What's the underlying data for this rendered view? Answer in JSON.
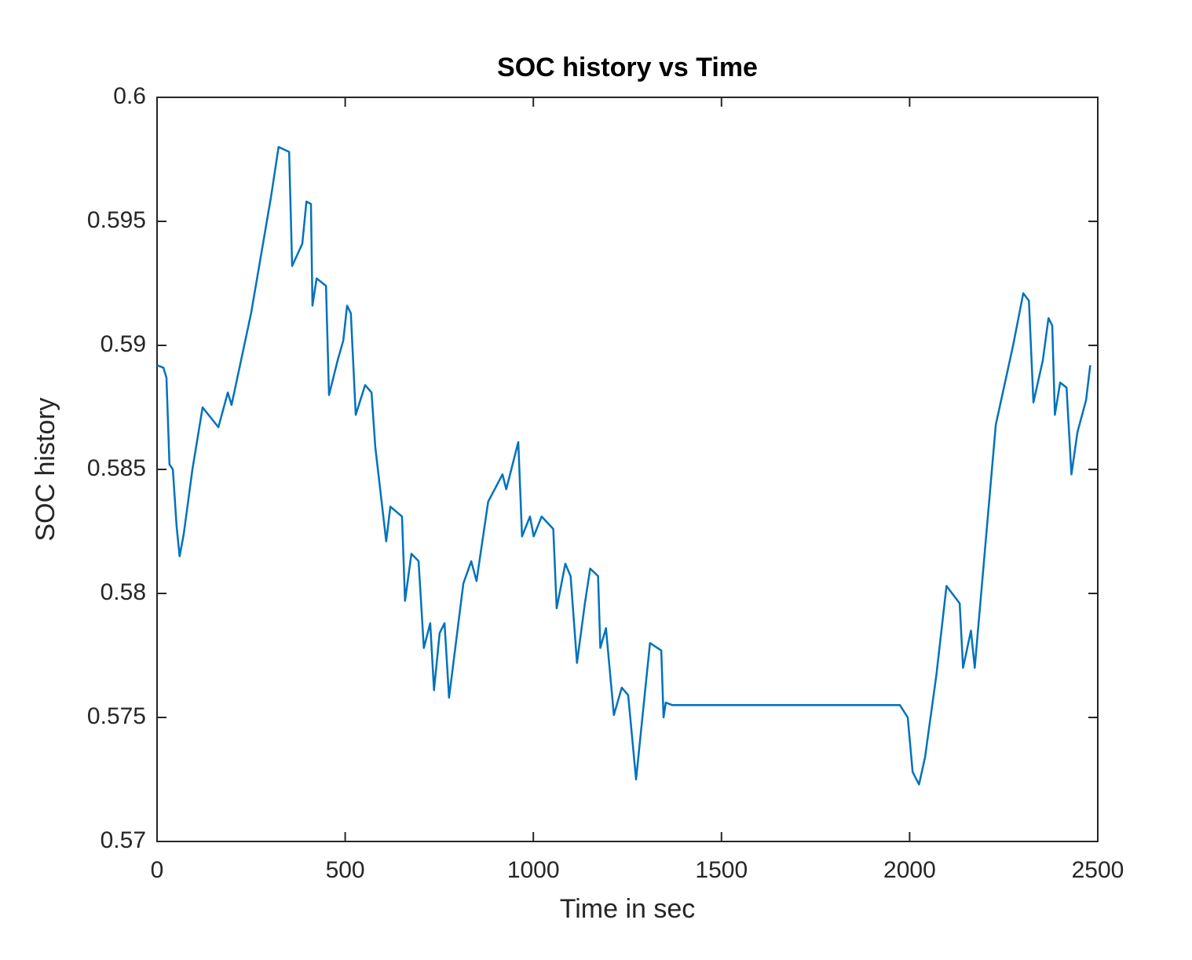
{
  "chart_data": {
    "type": "line",
    "title": "SOC history vs Time",
    "xlabel": "Time in sec",
    "ylabel": "SOC history",
    "x": [
      0,
      17,
      25,
      33,
      42,
      52,
      60,
      71,
      94,
      121,
      163,
      188,
      198,
      250,
      303,
      323,
      351,
      359,
      386,
      397,
      409,
      413,
      424,
      449,
      457,
      480,
      495,
      505,
      515,
      528,
      553,
      570,
      580,
      609,
      620,
      651,
      659,
      676,
      695,
      709,
      726,
      736,
      751,
      764,
      776,
      814,
      835,
      849,
      880,
      918,
      928,
      960,
      970,
      991,
      1001,
      1022,
      1053,
      1062,
      1085,
      1099,
      1116,
      1137,
      1151,
      1172,
      1178,
      1193,
      1214,
      1235,
      1252,
      1273,
      1310,
      1340,
      1346,
      1352,
      1369,
      1974,
      1995,
      2008,
      2025,
      2041,
      2071,
      2098,
      2133,
      2142,
      2163,
      2173,
      2229,
      2275,
      2302,
      2317,
      2329,
      2354,
      2369,
      2379,
      2386,
      2400,
      2417,
      2430,
      2446,
      2469,
      2480
    ],
    "series": [
      {
        "name": "SOC",
        "color": "#0072bd",
        "values": [
          0.5892,
          0.5891,
          0.5887,
          0.5852,
          0.585,
          0.5827,
          0.5815,
          0.5824,
          0.585,
          0.5875,
          0.5867,
          0.5881,
          0.5876,
          0.5913,
          0.596,
          0.598,
          0.5978,
          0.5932,
          0.5941,
          0.5958,
          0.5957,
          0.5916,
          0.5927,
          0.5924,
          0.588,
          0.5894,
          0.5902,
          0.5916,
          0.5913,
          0.5872,
          0.5884,
          0.5881,
          0.5859,
          0.5821,
          0.5835,
          0.5831,
          0.5797,
          0.5816,
          0.5813,
          0.5778,
          0.5788,
          0.5761,
          0.5784,
          0.5788,
          0.5758,
          0.5804,
          0.5813,
          0.5805,
          0.5837,
          0.5848,
          0.5842,
          0.5861,
          0.5823,
          0.5831,
          0.5823,
          0.5831,
          0.5826,
          0.5794,
          0.5812,
          0.5807,
          0.5772,
          0.5796,
          0.581,
          0.5807,
          0.5778,
          0.5786,
          0.5751,
          0.5762,
          0.5759,
          0.5725,
          0.578,
          0.5777,
          0.575,
          0.5756,
          0.5755,
          0.5755,
          0.575,
          0.5728,
          0.5723,
          0.5734,
          0.5767,
          0.5803,
          0.5796,
          0.577,
          0.5785,
          0.577,
          0.5868,
          0.59,
          0.5921,
          0.5918,
          0.5877,
          0.5894,
          0.5911,
          0.5908,
          0.5872,
          0.5885,
          0.5883,
          0.5848,
          0.5865,
          0.5878,
          0.5892
        ]
      }
    ],
    "xlim": [
      0,
      2500
    ],
    "xticks": [
      0,
      500,
      1000,
      1500,
      2000,
      2500
    ],
    "ylim": [
      0.57,
      0.6
    ],
    "yticks": [
      0.57,
      0.575,
      0.58,
      0.585,
      0.59,
      0.595,
      0.6
    ]
  }
}
